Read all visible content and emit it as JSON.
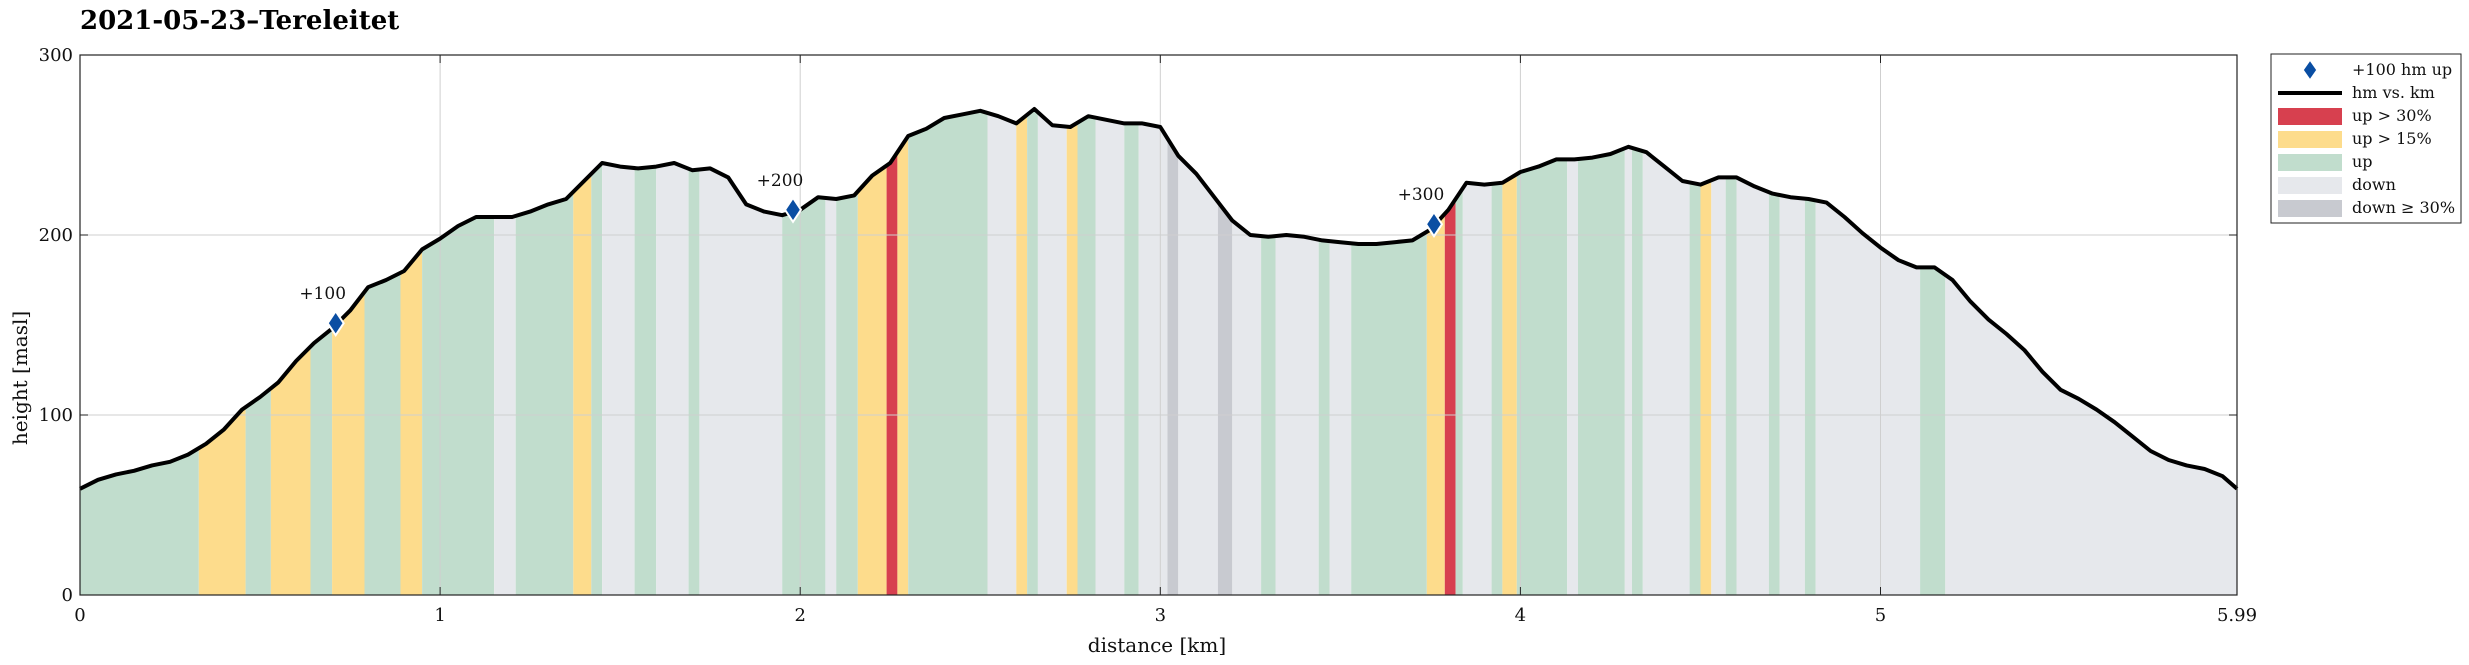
{
  "chart_data": {
    "type": "area",
    "title": "2021-05-23–Tereleitet",
    "xlabel": "distance [km]",
    "ylabel": "height [masl]",
    "xlim": [
      0,
      5.99
    ],
    "ylim": [
      0,
      300
    ],
    "x_ticks": [
      0,
      1,
      2,
      3,
      4,
      5,
      5.99
    ],
    "x_tick_labels": [
      "0",
      "1",
      "2",
      "3",
      "4",
      "5",
      "5.99"
    ],
    "y_ticks": [
      0,
      100,
      200,
      300
    ],
    "y_tick_labels": [
      "0",
      "100",
      "200",
      "300"
    ],
    "grid": true,
    "legend_position": "outside-top-right",
    "colors": {
      "up30": "#d7404f",
      "up15": "#fddc8c",
      "up": "#c1ddcd",
      "down": "#e6e8ec",
      "down30": "#c8cad0",
      "line": "#000000",
      "marker": "#0a4ea3"
    },
    "legend": [
      {
        "key": "marker",
        "label": "+100 hm up"
      },
      {
        "key": "line",
        "label": "hm vs. km"
      },
      {
        "key": "up30",
        "label": "up > 30%"
      },
      {
        "key": "up15",
        "label": "up > 15%"
      },
      {
        "key": "up",
        "label": "up"
      },
      {
        "key": "down",
        "label": "down"
      },
      {
        "key": "down30",
        "label": "down ≥ 30%"
      }
    ],
    "profile": [
      [
        0,
        59
      ],
      [
        0.05,
        64
      ],
      [
        0.1,
        67
      ],
      [
        0.15,
        69
      ],
      [
        0.2,
        72
      ],
      [
        0.25,
        74
      ],
      [
        0.3,
        78
      ],
      [
        0.35,
        84
      ],
      [
        0.4,
        92
      ],
      [
        0.45,
        103
      ],
      [
        0.5,
        110
      ],
      [
        0.55,
        118
      ],
      [
        0.6,
        130
      ],
      [
        0.65,
        140
      ],
      [
        0.7,
        148
      ],
      [
        0.75,
        158
      ],
      [
        0.8,
        171
      ],
      [
        0.85,
        175
      ],
      [
        0.9,
        180
      ],
      [
        0.95,
        192
      ],
      [
        1.0,
        198
      ],
      [
        1.05,
        205
      ],
      [
        1.1,
        210
      ],
      [
        1.15,
        210
      ],
      [
        1.2,
        210
      ],
      [
        1.25,
        213
      ],
      [
        1.3,
        217
      ],
      [
        1.35,
        220
      ],
      [
        1.4,
        230
      ],
      [
        1.45,
        240
      ],
      [
        1.5,
        238
      ],
      [
        1.55,
        237
      ],
      [
        1.6,
        238
      ],
      [
        1.65,
        240
      ],
      [
        1.7,
        236
      ],
      [
        1.75,
        237
      ],
      [
        1.8,
        232
      ],
      [
        1.85,
        217
      ],
      [
        1.9,
        213
      ],
      [
        1.95,
        211
      ],
      [
        2.0,
        214
      ],
      [
        2.05,
        221
      ],
      [
        2.1,
        220
      ],
      [
        2.15,
        222
      ],
      [
        2.2,
        233
      ],
      [
        2.25,
        240
      ],
      [
        2.3,
        255
      ],
      [
        2.35,
        259
      ],
      [
        2.4,
        265
      ],
      [
        2.45,
        267
      ],
      [
        2.5,
        269
      ],
      [
        2.55,
        266
      ],
      [
        2.6,
        262
      ],
      [
        2.65,
        270
      ],
      [
        2.7,
        261
      ],
      [
        2.75,
        260
      ],
      [
        2.8,
        266
      ],
      [
        2.85,
        264
      ],
      [
        2.9,
        262
      ],
      [
        2.95,
        262
      ],
      [
        3.0,
        260
      ],
      [
        3.05,
        244
      ],
      [
        3.1,
        234
      ],
      [
        3.15,
        221
      ],
      [
        3.2,
        208
      ],
      [
        3.25,
        200
      ],
      [
        3.3,
        199
      ],
      [
        3.35,
        200
      ],
      [
        3.4,
        199
      ],
      [
        3.45,
        197
      ],
      [
        3.5,
        196
      ],
      [
        3.55,
        195
      ],
      [
        3.6,
        195
      ],
      [
        3.65,
        196
      ],
      [
        3.7,
        197
      ],
      [
        3.75,
        203
      ],
      [
        3.8,
        214
      ],
      [
        3.85,
        229
      ],
      [
        3.9,
        228
      ],
      [
        3.95,
        229
      ],
      [
        4.0,
        235
      ],
      [
        4.05,
        238
      ],
      [
        4.1,
        242
      ],
      [
        4.15,
        242
      ],
      [
        4.2,
        243
      ],
      [
        4.25,
        245
      ],
      [
        4.3,
        249
      ],
      [
        4.35,
        246
      ],
      [
        4.4,
        238
      ],
      [
        4.45,
        230
      ],
      [
        4.5,
        228
      ],
      [
        4.55,
        232
      ],
      [
        4.6,
        232
      ],
      [
        4.65,
        227
      ],
      [
        4.7,
        223
      ],
      [
        4.75,
        221
      ],
      [
        4.8,
        220
      ],
      [
        4.85,
        218
      ],
      [
        4.9,
        210
      ],
      [
        4.95,
        201
      ],
      [
        5.0,
        193
      ],
      [
        5.05,
        186
      ],
      [
        5.1,
        182
      ],
      [
        5.15,
        182
      ],
      [
        5.2,
        175
      ],
      [
        5.25,
        163
      ],
      [
        5.3,
        153
      ],
      [
        5.35,
        145
      ],
      [
        5.4,
        136
      ],
      [
        5.45,
        124
      ],
      [
        5.5,
        114
      ],
      [
        5.55,
        109
      ],
      [
        5.6,
        103
      ],
      [
        5.65,
        96
      ],
      [
        5.7,
        88
      ],
      [
        5.75,
        80
      ],
      [
        5.8,
        75
      ],
      [
        5.85,
        72
      ],
      [
        5.9,
        70
      ],
      [
        5.95,
        66
      ],
      [
        5.99,
        59
      ]
    ],
    "bands": [
      {
        "x0": 0.0,
        "x1": 0.33,
        "cat": "up"
      },
      {
        "x0": 0.33,
        "x1": 0.46,
        "cat": "up15"
      },
      {
        "x0": 0.46,
        "x1": 0.53,
        "cat": "up"
      },
      {
        "x0": 0.53,
        "x1": 0.64,
        "cat": "up15"
      },
      {
        "x0": 0.64,
        "x1": 0.7,
        "cat": "up"
      },
      {
        "x0": 0.7,
        "x1": 0.79,
        "cat": "up15"
      },
      {
        "x0": 0.79,
        "x1": 0.89,
        "cat": "up"
      },
      {
        "x0": 0.89,
        "x1": 0.95,
        "cat": "up15"
      },
      {
        "x0": 0.95,
        "x1": 1.15,
        "cat": "up"
      },
      {
        "x0": 1.15,
        "x1": 1.21,
        "cat": "down"
      },
      {
        "x0": 1.21,
        "x1": 1.37,
        "cat": "up"
      },
      {
        "x0": 1.37,
        "x1": 1.42,
        "cat": "up15"
      },
      {
        "x0": 1.42,
        "x1": 1.45,
        "cat": "up"
      },
      {
        "x0": 1.45,
        "x1": 1.54,
        "cat": "down"
      },
      {
        "x0": 1.54,
        "x1": 1.6,
        "cat": "up"
      },
      {
        "x0": 1.6,
        "x1": 1.69,
        "cat": "down"
      },
      {
        "x0": 1.69,
        "x1": 1.72,
        "cat": "up"
      },
      {
        "x0": 1.72,
        "x1": 1.95,
        "cat": "down"
      },
      {
        "x0": 1.95,
        "x1": 2.07,
        "cat": "up"
      },
      {
        "x0": 2.07,
        "x1": 2.1,
        "cat": "down"
      },
      {
        "x0": 2.1,
        "x1": 2.16,
        "cat": "up"
      },
      {
        "x0": 2.16,
        "x1": 2.24,
        "cat": "up15"
      },
      {
        "x0": 2.24,
        "x1": 2.27,
        "cat": "up30"
      },
      {
        "x0": 2.27,
        "x1": 2.3,
        "cat": "up15"
      },
      {
        "x0": 2.3,
        "x1": 2.52,
        "cat": "up"
      },
      {
        "x0": 2.52,
        "x1": 2.6,
        "cat": "down"
      },
      {
        "x0": 2.6,
        "x1": 2.63,
        "cat": "up15"
      },
      {
        "x0": 2.63,
        "x1": 2.66,
        "cat": "up"
      },
      {
        "x0": 2.66,
        "x1": 2.74,
        "cat": "down"
      },
      {
        "x0": 2.74,
        "x1": 2.77,
        "cat": "up15"
      },
      {
        "x0": 2.77,
        "x1": 2.82,
        "cat": "up"
      },
      {
        "x0": 2.82,
        "x1": 2.9,
        "cat": "down"
      },
      {
        "x0": 2.9,
        "x1": 2.94,
        "cat": "up"
      },
      {
        "x0": 2.94,
        "x1": 3.02,
        "cat": "down"
      },
      {
        "x0": 3.02,
        "x1": 3.05,
        "cat": "down30"
      },
      {
        "x0": 3.05,
        "x1": 3.16,
        "cat": "down"
      },
      {
        "x0": 3.16,
        "x1": 3.2,
        "cat": "down30"
      },
      {
        "x0": 3.2,
        "x1": 3.28,
        "cat": "down"
      },
      {
        "x0": 3.28,
        "x1": 3.32,
        "cat": "up"
      },
      {
        "x0": 3.32,
        "x1": 3.44,
        "cat": "down"
      },
      {
        "x0": 3.44,
        "x1": 3.47,
        "cat": "up"
      },
      {
        "x0": 3.47,
        "x1": 3.53,
        "cat": "down"
      },
      {
        "x0": 3.53,
        "x1": 3.74,
        "cat": "up"
      },
      {
        "x0": 3.74,
        "x1": 3.79,
        "cat": "up15"
      },
      {
        "x0": 3.79,
        "x1": 3.82,
        "cat": "up30"
      },
      {
        "x0": 3.82,
        "x1": 3.84,
        "cat": "up"
      },
      {
        "x0": 3.84,
        "x1": 3.92,
        "cat": "down"
      },
      {
        "x0": 3.92,
        "x1": 3.95,
        "cat": "up"
      },
      {
        "x0": 3.95,
        "x1": 3.99,
        "cat": "up15"
      },
      {
        "x0": 3.99,
        "x1": 4.13,
        "cat": "up"
      },
      {
        "x0": 4.13,
        "x1": 4.16,
        "cat": "down"
      },
      {
        "x0": 4.16,
        "x1": 4.29,
        "cat": "up"
      },
      {
        "x0": 4.29,
        "x1": 4.31,
        "cat": "down"
      },
      {
        "x0": 4.31,
        "x1": 4.34,
        "cat": "up"
      },
      {
        "x0": 4.34,
        "x1": 4.47,
        "cat": "down"
      },
      {
        "x0": 4.47,
        "x1": 4.5,
        "cat": "up"
      },
      {
        "x0": 4.5,
        "x1": 4.53,
        "cat": "up15"
      },
      {
        "x0": 4.53,
        "x1": 4.57,
        "cat": "down"
      },
      {
        "x0": 4.57,
        "x1": 4.6,
        "cat": "up"
      },
      {
        "x0": 4.6,
        "x1": 4.69,
        "cat": "down"
      },
      {
        "x0": 4.69,
        "x1": 4.72,
        "cat": "up"
      },
      {
        "x0": 4.72,
        "x1": 4.79,
        "cat": "down"
      },
      {
        "x0": 4.79,
        "x1": 4.82,
        "cat": "up"
      },
      {
        "x0": 4.82,
        "x1": 5.11,
        "cat": "down"
      },
      {
        "x0": 5.11,
        "x1": 5.18,
        "cat": "up"
      },
      {
        "x0": 5.18,
        "x1": 5.99,
        "cat": "down"
      }
    ],
    "markers": [
      {
        "label": "+100",
        "x": 0.71,
        "y": 151
      },
      {
        "label": "+200",
        "x": 1.98,
        "y": 214
      },
      {
        "label": "+300",
        "x": 3.76,
        "y": 206
      }
    ]
  }
}
